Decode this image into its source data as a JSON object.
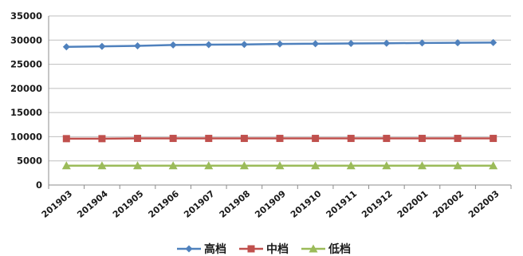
{
  "chart_data": {
    "type": "line",
    "title": "",
    "xlabel": "",
    "ylabel": "",
    "categories": [
      "201903",
      "201904",
      "201905",
      "201906",
      "201907",
      "201908",
      "201909",
      "201910",
      "201911",
      "201912",
      "202001",
      "202002",
      "202003"
    ],
    "ylim": [
      0,
      35000
    ],
    "yticks": [
      0,
      5000,
      10000,
      15000,
      20000,
      25000,
      30000,
      35000
    ],
    "grid": true,
    "legend": "bottom",
    "series": [
      {
        "name": "高档",
        "color": "#4f81bd",
        "marker": "diamond",
        "values": [
          28600,
          28700,
          28800,
          29000,
          29050,
          29100,
          29200,
          29250,
          29300,
          29350,
          29400,
          29450,
          29500
        ]
      },
      {
        "name": "中档",
        "color": "#c0504d",
        "marker": "square",
        "values": [
          9600,
          9600,
          9650,
          9650,
          9650,
          9650,
          9650,
          9650,
          9650,
          9650,
          9650,
          9650,
          9650
        ]
      },
      {
        "name": "低档",
        "color": "#9bbb59",
        "marker": "triangle",
        "values": [
          4000,
          4000,
          4000,
          4000,
          4000,
          4000,
          4000,
          4000,
          4000,
          4000,
          4000,
          4000,
          4000
        ]
      }
    ]
  }
}
